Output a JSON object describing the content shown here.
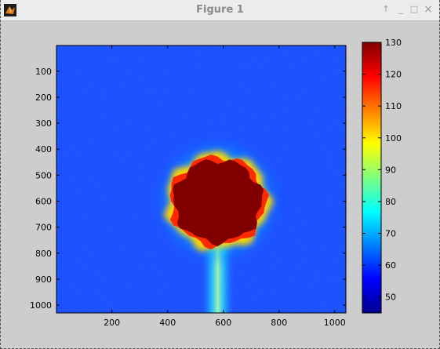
{
  "window": {
    "title": "Figure 1",
    "controls": {
      "up": "↑",
      "minimize": "_",
      "maximize": "□",
      "close": "×"
    }
  },
  "chart_data": {
    "type": "heatmap",
    "title": "",
    "xlabel": "",
    "ylabel": "",
    "x_ticks": [
      "200",
      "400",
      "600",
      "800",
      "1000"
    ],
    "y_ticks": [
      "100",
      "200",
      "300",
      "400",
      "500",
      "600",
      "700",
      "800",
      "900",
      "1000"
    ],
    "xlim": [
      1,
      1040
    ],
    "ylim": [
      1,
      1030
    ],
    "y_reversed": true,
    "colormap": "jet",
    "colorbar": {
      "range": [
        45,
        130
      ],
      "ticks": [
        "50",
        "60",
        "70",
        "80",
        "90",
        "100",
        "110",
        "120",
        "130"
      ]
    },
    "features": {
      "background_value": 60,
      "saturated_region": {
        "center_x": 580,
        "center_y": 600,
        "radius": 165,
        "value": 130
      },
      "vertical_plume": {
        "center_x": 580,
        "from_y": 770,
        "to_y": 1030,
        "value": 80
      }
    }
  }
}
